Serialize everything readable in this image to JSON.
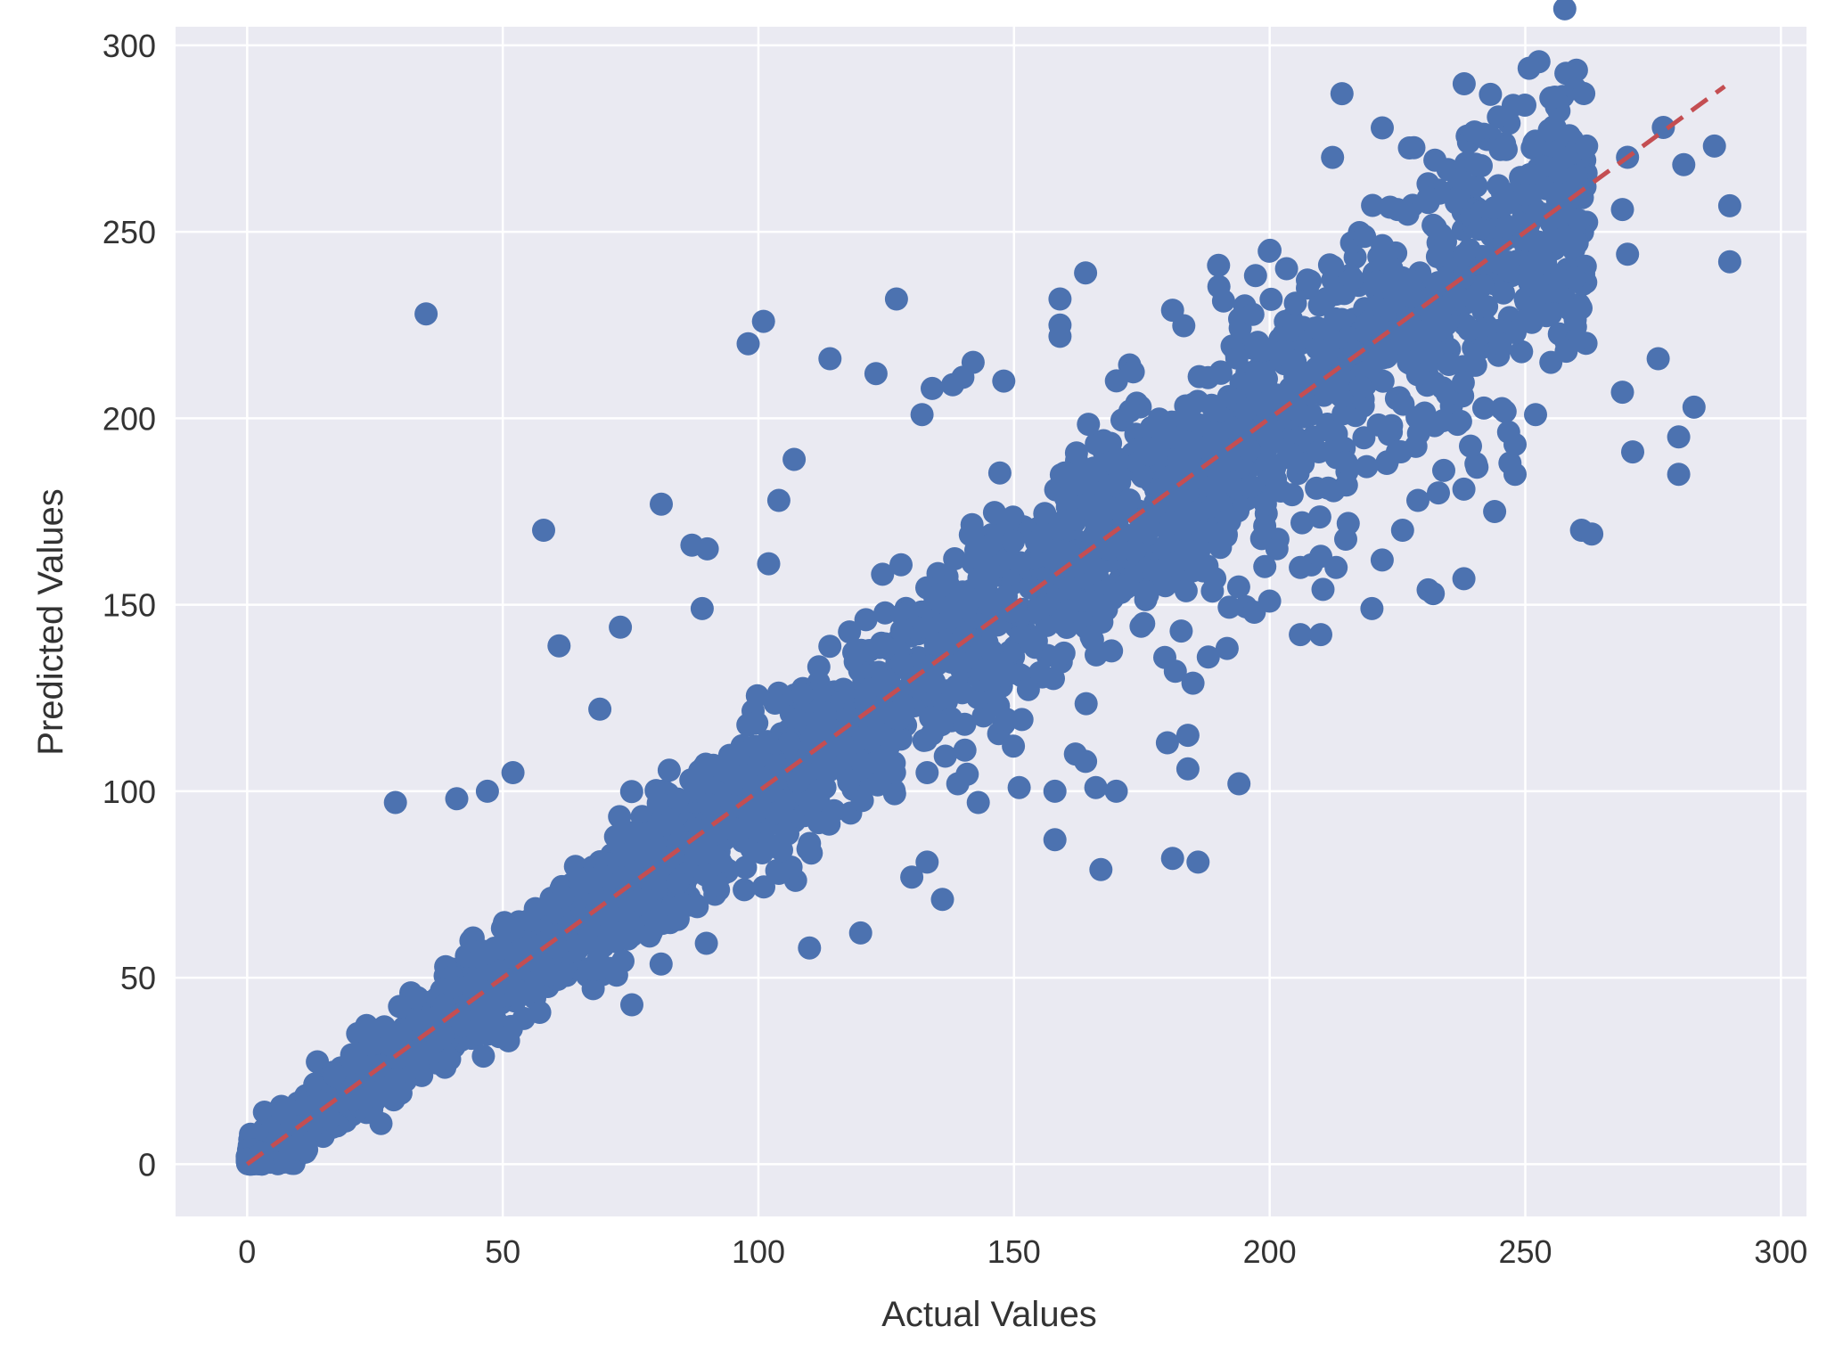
{
  "chart_data": {
    "type": "scatter",
    "title": "",
    "xlabel": "Actual Values",
    "ylabel": "Predicted Values",
    "xlim": [
      -14,
      305
    ],
    "ylim": [
      -14,
      305
    ],
    "xticks": [
      0,
      50,
      100,
      150,
      200,
      250,
      300
    ],
    "yticks": [
      0,
      50,
      100,
      150,
      200,
      250,
      300
    ],
    "grid": true,
    "legend": "none",
    "colors": {
      "background": "#eaeaf2",
      "grid": "#ffffff",
      "points": "#4c72b0",
      "reference_line": "#c44e52"
    },
    "reference_line": {
      "x": [
        0,
        289
      ],
      "y": [
        0,
        289
      ],
      "style": "dashed"
    },
    "outliers": [
      [
        35,
        228
      ],
      [
        58,
        170
      ],
      [
        29,
        97
      ],
      [
        41,
        98
      ],
      [
        47,
        100
      ],
      [
        52,
        105
      ],
      [
        98,
        220
      ],
      [
        101,
        226
      ],
      [
        114,
        216
      ],
      [
        123,
        212
      ],
      [
        127,
        232
      ],
      [
        81,
        177
      ],
      [
        61,
        139
      ],
      [
        73,
        144
      ],
      [
        69,
        122
      ],
      [
        87,
        166
      ],
      [
        90,
        165
      ],
      [
        89,
        149
      ],
      [
        110,
        58
      ],
      [
        120,
        62
      ],
      [
        136,
        71
      ],
      [
        158,
        87
      ],
      [
        167,
        79
      ],
      [
        181,
        82
      ],
      [
        186,
        81
      ],
      [
        194,
        102
      ],
      [
        261,
        170
      ],
      [
        263,
        169
      ],
      [
        280,
        185
      ],
      [
        280,
        195
      ],
      [
        283,
        203
      ],
      [
        271,
        191
      ],
      [
        269,
        207
      ],
      [
        276,
        216
      ],
      [
        270,
        244
      ],
      [
        290,
        242
      ],
      [
        290,
        257
      ],
      [
        269,
        256
      ],
      [
        287,
        273
      ],
      [
        281,
        268
      ],
      [
        277,
        278
      ],
      [
        270,
        270
      ],
      [
        260,
        272
      ],
      [
        262,
        273
      ],
      [
        260,
        265
      ],
      [
        250,
        260
      ],
      [
        231,
        259
      ],
      [
        225,
        256
      ],
      [
        190,
        241
      ],
      [
        164,
        239
      ],
      [
        181,
        229
      ],
      [
        159,
        222
      ],
      [
        159,
        225
      ],
      [
        159,
        232
      ],
      [
        148,
        210
      ],
      [
        140,
        211
      ],
      [
        142,
        215
      ],
      [
        132,
        201
      ],
      [
        134,
        208
      ],
      [
        138,
        209
      ],
      [
        104,
        178
      ],
      [
        102,
        161
      ],
      [
        107,
        189
      ],
      [
        180,
        113
      ],
      [
        184,
        115
      ],
      [
        184,
        106
      ],
      [
        185,
        129
      ],
      [
        188,
        136
      ],
      [
        197,
        148
      ],
      [
        200,
        151
      ],
      [
        206,
        142
      ],
      [
        210,
        142
      ],
      [
        220,
        149
      ],
      [
        226,
        170
      ],
      [
        231,
        154
      ],
      [
        232,
        153
      ],
      [
        238,
        157
      ],
      [
        244,
        175
      ],
      [
        248,
        185
      ],
      [
        247,
        188
      ],
      [
        248,
        193
      ],
      [
        252,
        201
      ],
      [
        255,
        228
      ],
      [
        260,
        221
      ],
      [
        258,
        218
      ],
      [
        255,
        215
      ],
      [
        238,
        181
      ],
      [
        233,
        180
      ],
      [
        229,
        178
      ],
      [
        222,
        162
      ],
      [
        213,
        160
      ],
      [
        206,
        160
      ],
      [
        210,
        163
      ],
      [
        162,
        110
      ],
      [
        166,
        101
      ],
      [
        170,
        100
      ],
      [
        164,
        108
      ],
      [
        158,
        100
      ],
      [
        151,
        101
      ],
      [
        143,
        97
      ],
      [
        139,
        102
      ],
      [
        133,
        105
      ],
      [
        133,
        81
      ],
      [
        130,
        77
      ],
      [
        113,
        101
      ],
      [
        110,
        86
      ],
      [
        104,
        78
      ]
    ]
  }
}
